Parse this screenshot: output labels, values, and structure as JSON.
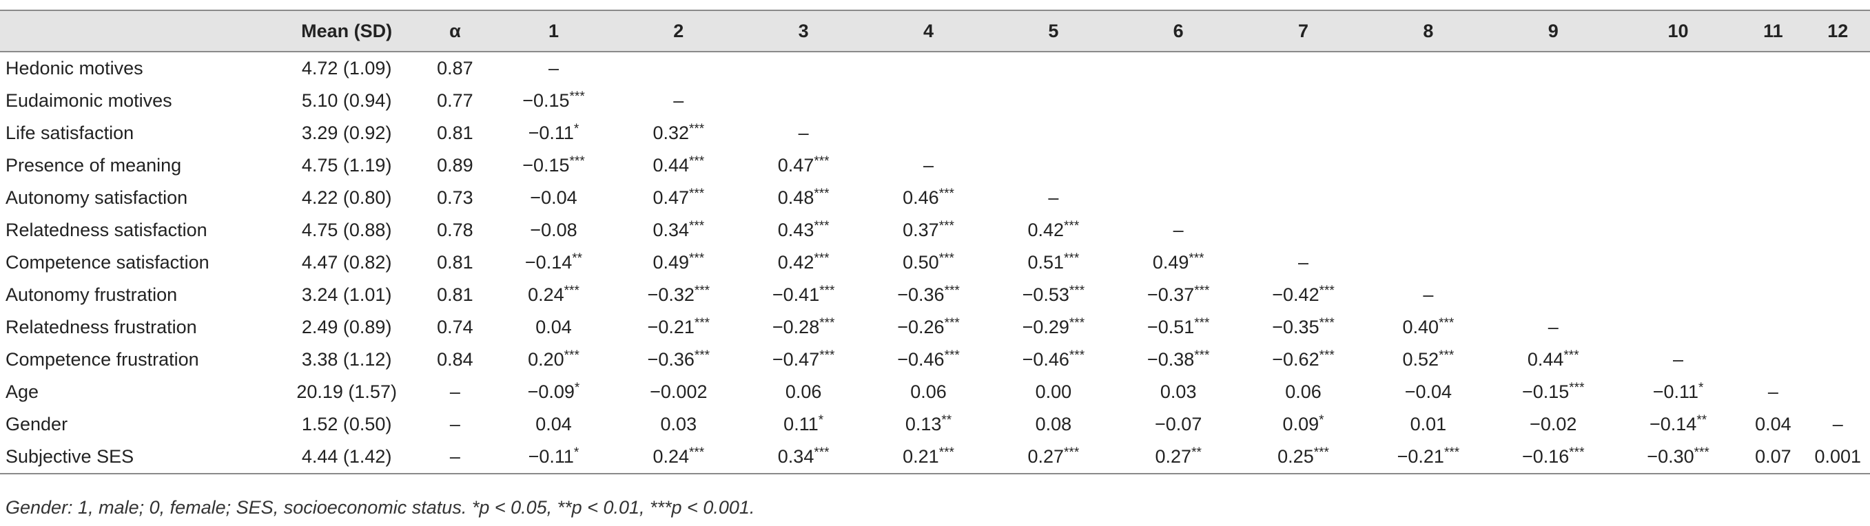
{
  "table": {
    "headers": [
      "",
      "Mean (SD)",
      "α",
      "1",
      "2",
      "3",
      "4",
      "5",
      "6",
      "7",
      "8",
      "9",
      "10",
      "11",
      "12"
    ],
    "rows": [
      {
        "label": "Hedonic motives",
        "mean_sd": "4.72 (1.09)",
        "alpha": "0.87",
        "cells": [
          "–",
          "",
          "",
          "",
          "",
          "",
          "",
          "",
          "",
          "",
          "",
          ""
        ]
      },
      {
        "label": "Eudaimonic motives",
        "mean_sd": "5.10 (0.94)",
        "alpha": "0.77",
        "cells": [
          "−0.15***",
          "–",
          "",
          "",
          "",
          "",
          "",
          "",
          "",
          "",
          "",
          ""
        ]
      },
      {
        "label": "Life satisfaction",
        "mean_sd": "3.29 (0.92)",
        "alpha": "0.81",
        "cells": [
          "−0.11*",
          "0.32***",
          "–",
          "",
          "",
          "",
          "",
          "",
          "",
          "",
          "",
          ""
        ]
      },
      {
        "label": "Presence of meaning",
        "mean_sd": "4.75 (1.19)",
        "alpha": "0.89",
        "cells": [
          "−0.15***",
          "0.44***",
          "0.47***",
          "–",
          "",
          "",
          "",
          "",
          "",
          "",
          "",
          ""
        ]
      },
      {
        "label": "Autonomy satisfaction",
        "mean_sd": "4.22 (0.80)",
        "alpha": "0.73",
        "cells": [
          "−0.04",
          "0.47***",
          "0.48***",
          "0.46***",
          "–",
          "",
          "",
          "",
          "",
          "",
          "",
          ""
        ]
      },
      {
        "label": "Relatedness satisfaction",
        "mean_sd": "4.75 (0.88)",
        "alpha": "0.78",
        "cells": [
          "−0.08",
          "0.34***",
          "0.43***",
          "0.37***",
          "0.42***",
          "–",
          "",
          "",
          "",
          "",
          "",
          ""
        ]
      },
      {
        "label": "Competence satisfaction",
        "mean_sd": "4.47 (0.82)",
        "alpha": "0.81",
        "cells": [
          "−0.14**",
          "0.49***",
          "0.42***",
          "0.50***",
          "0.51***",
          "0.49***",
          "–",
          "",
          "",
          "",
          "",
          ""
        ]
      },
      {
        "label": "Autonomy frustration",
        "mean_sd": "3.24 (1.01)",
        "alpha": "0.81",
        "cells": [
          "0.24***",
          "−0.32***",
          "−0.41***",
          "−0.36***",
          "−0.53***",
          "−0.37***",
          "−0.42***",
          "–",
          "",
          "",
          "",
          ""
        ]
      },
      {
        "label": "Relatedness frustration",
        "mean_sd": "2.49 (0.89)",
        "alpha": "0.74",
        "cells": [
          "0.04",
          "−0.21***",
          "−0.28***",
          "−0.26***",
          "−0.29***",
          "−0.51***",
          "−0.35***",
          "0.40***",
          "–",
          "",
          "",
          ""
        ]
      },
      {
        "label": "Competence frustration",
        "mean_sd": "3.38 (1.12)",
        "alpha": "0.84",
        "cells": [
          "0.20***",
          "−0.36***",
          "−0.47***",
          "−0.46***",
          "−0.46***",
          "−0.38***",
          "−0.62***",
          "0.52***",
          "0.44***",
          "–",
          "",
          ""
        ]
      },
      {
        "label": "Age",
        "mean_sd": "20.19 (1.57)",
        "alpha": "–",
        "cells": [
          "−0.09*",
          "−0.002",
          "0.06",
          "0.06",
          "0.00",
          "0.03",
          "0.06",
          "−0.04",
          "−0.15***",
          "−0.11*",
          "–",
          ""
        ]
      },
      {
        "label": "Gender",
        "mean_sd": "1.52 (0.50)",
        "alpha": "–",
        "cells": [
          "0.04",
          "0.03",
          "0.11*",
          "0.13**",
          "0.08",
          "−0.07",
          "0.09*",
          "0.01",
          "−0.02",
          "−0.14**",
          "0.04",
          "–"
        ]
      },
      {
        "label": "Subjective SES",
        "mean_sd": "4.44 (1.42)",
        "alpha": "–",
        "cells": [
          "−0.11*",
          "0.24***",
          "0.34***",
          "0.21***",
          "0.27***",
          "0.27**",
          "0.25***",
          "−0.21***",
          "−0.16***",
          "−0.30***",
          "0.07",
          "0.001"
        ]
      }
    ]
  },
  "footnote": "Gender: 1, male; 0, female; SES, socioeconomic status. *p < 0.05, **p < 0.01, ***p < 0.001."
}
